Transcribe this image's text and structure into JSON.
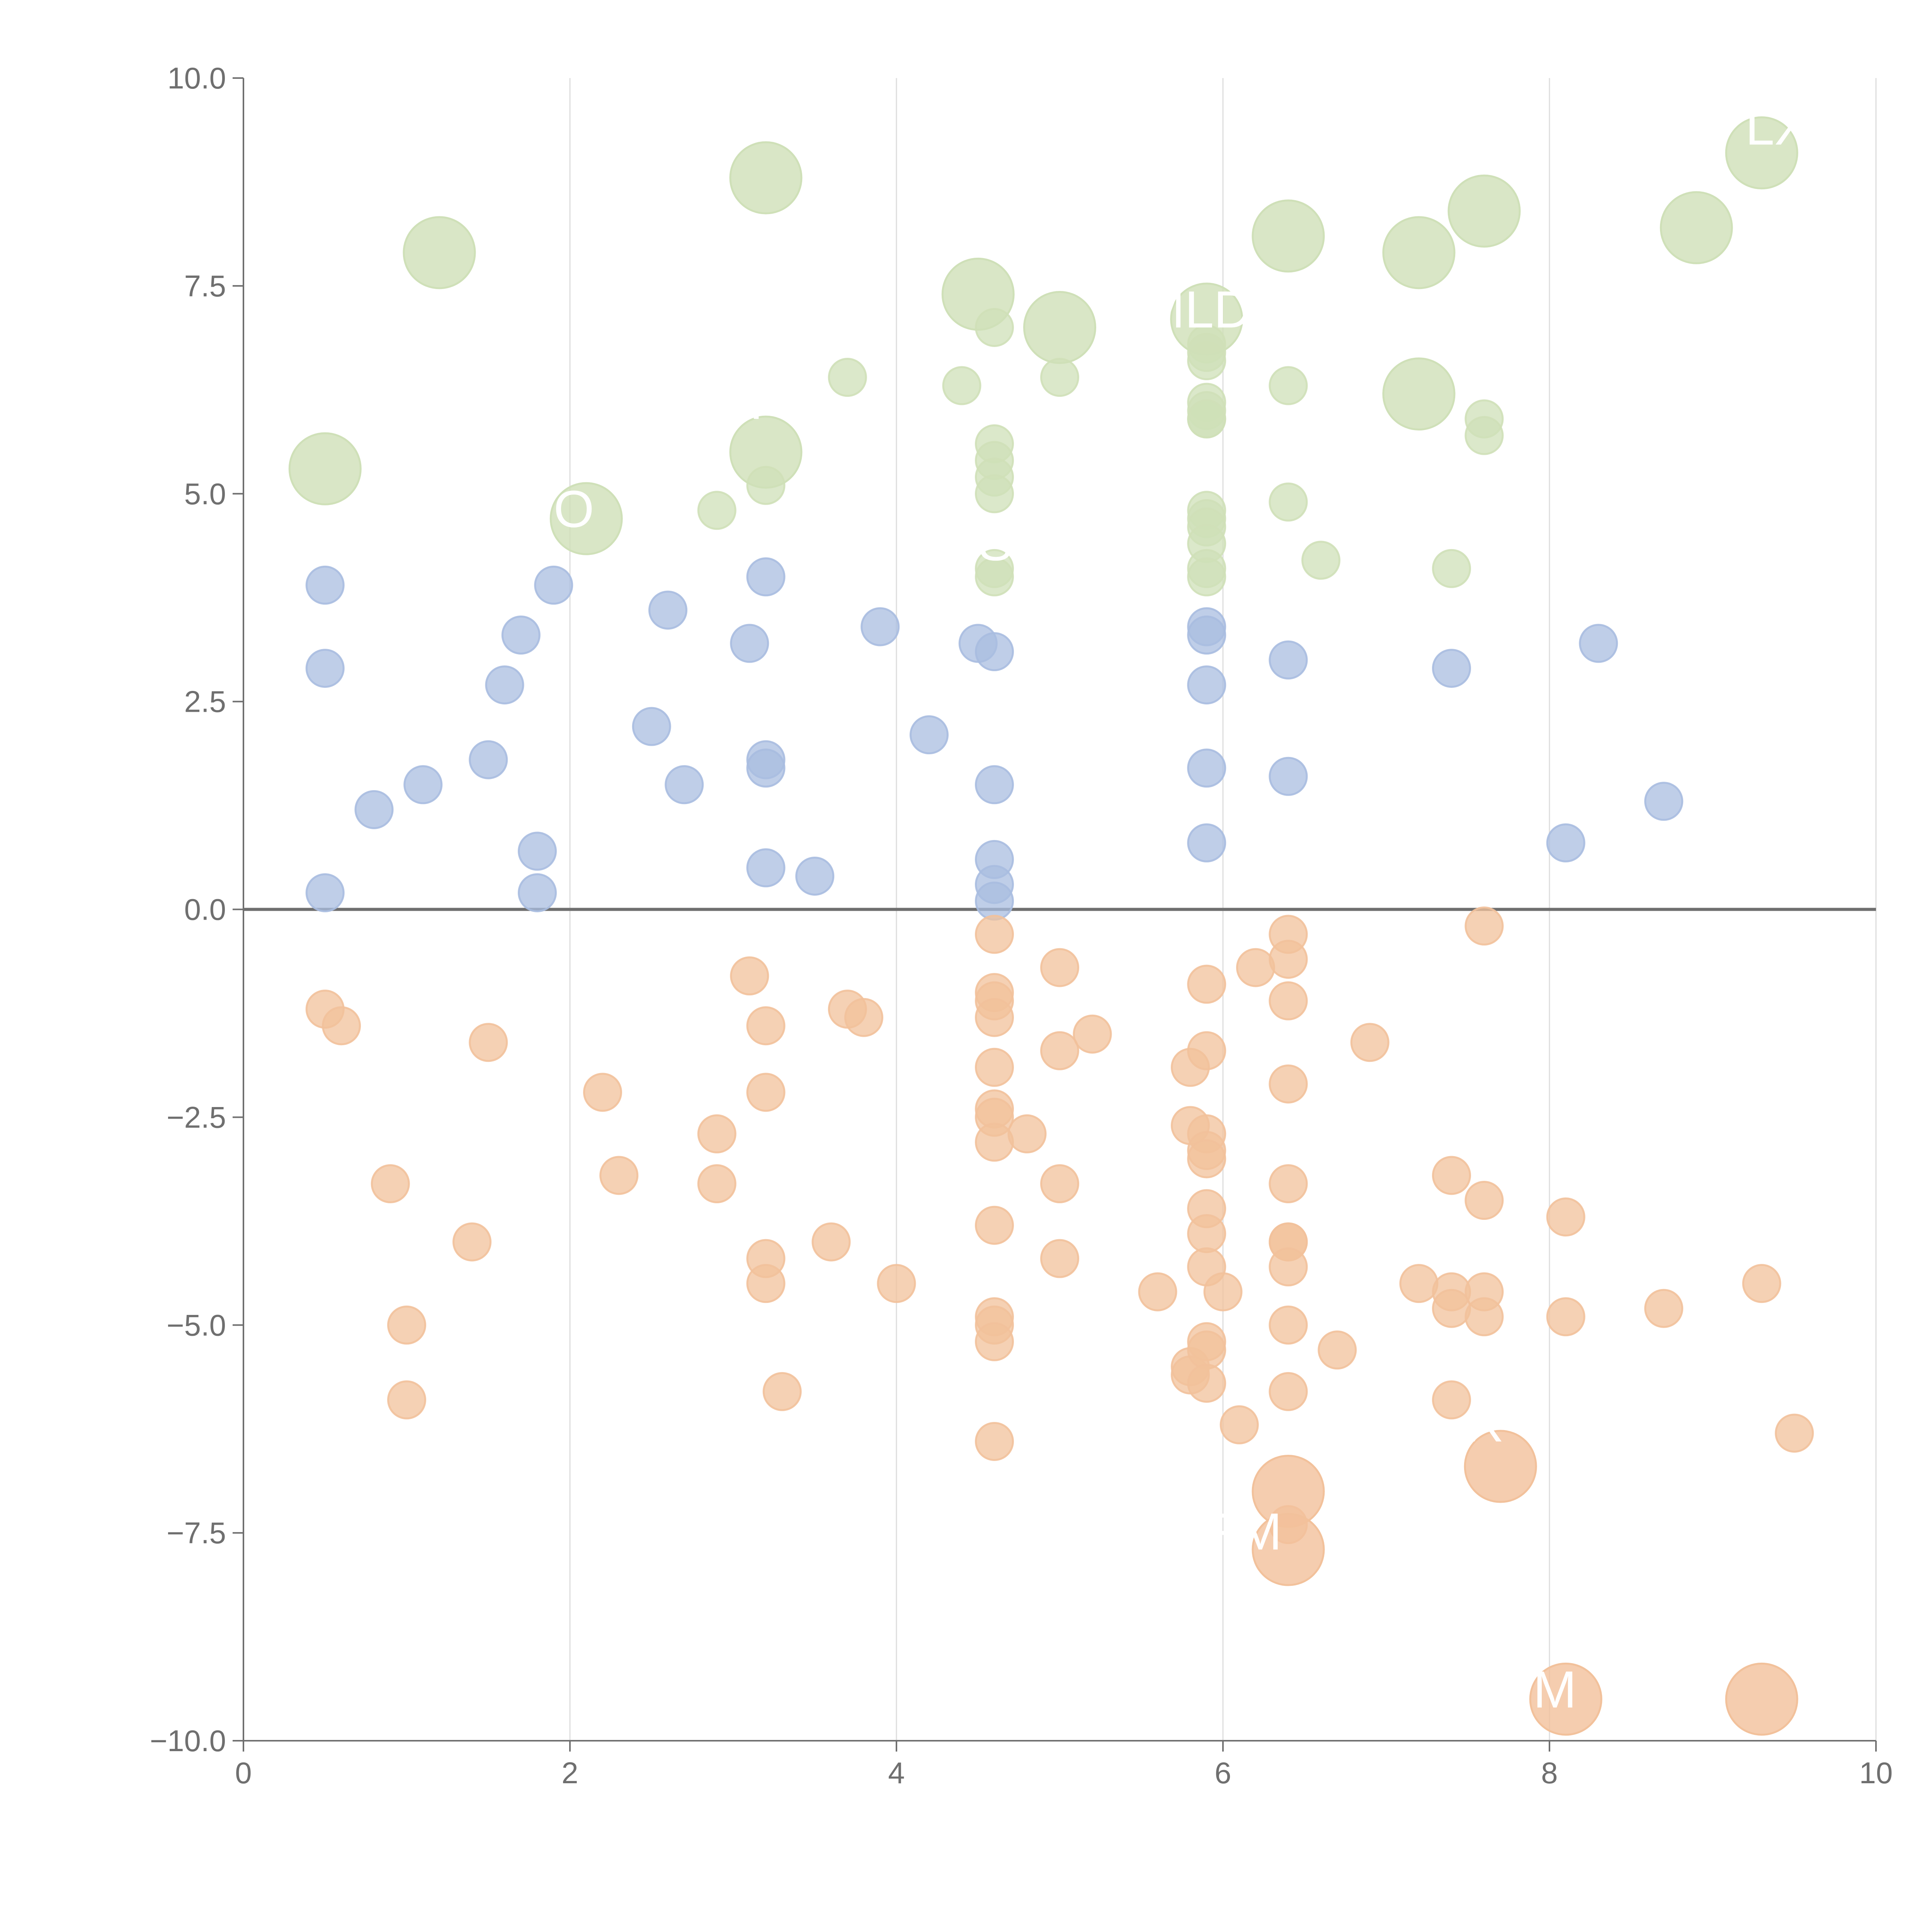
{
  "chart_data": {
    "type": "scatter",
    "title": "",
    "xlabel": "",
    "ylabel": "",
    "xlim": [
      0,
      10
    ],
    "ylim": [
      -10,
      10
    ],
    "x_ticks": [
      "0",
      "2",
      "4",
      "6",
      "8",
      "10"
    ],
    "y_ticks": [
      "−10.0",
      "−7.5",
      "−5.0",
      "−2.5",
      "0.0",
      "2.5",
      "5.0",
      "7.5",
      "10.0"
    ],
    "grid": "vertical",
    "reference_line_y": 0,
    "series": [
      {
        "color": "#a9bde0",
        "points": [
          [
            0.5,
            3.9
          ],
          [
            0.5,
            2.9
          ],
          [
            0.5,
            0.2
          ],
          [
            0.8,
            1.2
          ],
          [
            1.1,
            1.5
          ],
          [
            1.5,
            1.8
          ],
          [
            1.6,
            2.7
          ],
          [
            1.7,
            3.3
          ],
          [
            1.8,
            0.7
          ],
          [
            1.8,
            0.2
          ],
          [
            1.9,
            3.9
          ],
          [
            2.5,
            2.2
          ],
          [
            2.6,
            3.6
          ],
          [
            2.7,
            1.5
          ],
          [
            3.1,
            3.2
          ],
          [
            3.2,
            4.0
          ],
          [
            3.2,
            1.8
          ],
          [
            3.2,
            1.7
          ],
          [
            3.2,
            0.5
          ],
          [
            3.5,
            0.4
          ],
          [
            3.9,
            3.4
          ],
          [
            4.2,
            2.1
          ],
          [
            4.5,
            3.2
          ],
          [
            4.6,
            3.1
          ],
          [
            4.6,
            1.5
          ],
          [
            4.6,
            0.6
          ],
          [
            4.6,
            0.3
          ],
          [
            4.6,
            0.1
          ],
          [
            5.9,
            3.4
          ],
          [
            5.9,
            3.3
          ],
          [
            5.9,
            2.7
          ],
          [
            5.9,
            1.7
          ],
          [
            5.9,
            0.8
          ],
          [
            6.4,
            3.0
          ],
          [
            6.4,
            1.6
          ],
          [
            7.4,
            2.9
          ],
          [
            8.1,
            0.8
          ],
          [
            8.3,
            3.2
          ],
          [
            8.7,
            1.3
          ]
        ]
      },
      {
        "color": "#cfe0b8",
        "points": [
          [
            2.9,
            4.8
          ],
          [
            3.2,
            5.1
          ],
          [
            3.7,
            6.4
          ],
          [
            4.4,
            6.3
          ],
          [
            4.6,
            7.0
          ],
          [
            4.6,
            5.6
          ],
          [
            4.6,
            5.4
          ],
          [
            4.6,
            5.2
          ],
          [
            4.6,
            5.0
          ],
          [
            4.6,
            4.1
          ],
          [
            4.6,
            4.0
          ],
          [
            5.0,
            6.4
          ],
          [
            5.9,
            6.8
          ],
          [
            5.9,
            6.7
          ],
          [
            5.9,
            6.6
          ],
          [
            5.9,
            6.1
          ],
          [
            5.9,
            6.0
          ],
          [
            5.9,
            5.9
          ],
          [
            5.9,
            5.9
          ],
          [
            5.9,
            4.8
          ],
          [
            5.9,
            4.7
          ],
          [
            5.9,
            4.6
          ],
          [
            5.9,
            4.4
          ],
          [
            5.9,
            4.1
          ],
          [
            5.9,
            4.0
          ],
          [
            6.4,
            6.3
          ],
          [
            6.4,
            4.9
          ],
          [
            6.6,
            4.2
          ],
          [
            7.4,
            4.1
          ],
          [
            7.6,
            5.9
          ],
          [
            7.6,
            5.7
          ]
        ],
        "large_points": [
          [
            0.5,
            5.3
          ],
          [
            1.2,
            7.9
          ],
          [
            2.1,
            4.7
          ],
          [
            3.2,
            8.8
          ],
          [
            3.2,
            5.5
          ],
          [
            4.5,
            7.4
          ],
          [
            5.0,
            7.0
          ],
          [
            5.9,
            7.1
          ],
          [
            6.4,
            8.1
          ],
          [
            7.2,
            7.9
          ],
          [
            7.2,
            6.2
          ],
          [
            7.6,
            8.4
          ],
          [
            8.9,
            8.2
          ],
          [
            9.3,
            9.1
          ]
        ]
      },
      {
        "color": "#f2c19b",
        "points": [
          [
            0.5,
            -1.2
          ],
          [
            0.6,
            -1.4
          ],
          [
            0.9,
            -3.3
          ],
          [
            1.0,
            -5.0
          ],
          [
            1.0,
            -5.9
          ],
          [
            1.4,
            -4.0
          ],
          [
            1.5,
            -1.6
          ],
          [
            2.2,
            -2.2
          ],
          [
            2.3,
            -3.2
          ],
          [
            2.9,
            -2.7
          ],
          [
            2.9,
            -3.3
          ],
          [
            3.1,
            -0.8
          ],
          [
            3.2,
            -1.4
          ],
          [
            3.2,
            -2.2
          ],
          [
            3.2,
            -4.2
          ],
          [
            3.2,
            -4.5
          ],
          [
            3.3,
            -5.8
          ],
          [
            3.6,
            -4.0
          ],
          [
            3.7,
            -1.2
          ],
          [
            3.8,
            -1.3
          ],
          [
            4.0,
            -4.5
          ],
          [
            4.6,
            -0.3
          ],
          [
            4.6,
            -1.0
          ],
          [
            4.6,
            -1.1
          ],
          [
            4.6,
            -1.3
          ],
          [
            4.6,
            -1.9
          ],
          [
            4.6,
            -2.4
          ],
          [
            4.6,
            -2.5
          ],
          [
            4.6,
            -2.8
          ],
          [
            4.6,
            -3.8
          ],
          [
            4.6,
            -4.9
          ],
          [
            4.6,
            -5.0
          ],
          [
            4.6,
            -5.2
          ],
          [
            4.6,
            -6.4
          ],
          [
            4.8,
            -2.7
          ],
          [
            5.0,
            -0.7
          ],
          [
            5.0,
            -1.7
          ],
          [
            5.0,
            -3.3
          ],
          [
            5.0,
            -4.2
          ],
          [
            5.2,
            -1.5
          ],
          [
            5.6,
            -4.6
          ],
          [
            5.8,
            -5.5
          ],
          [
            5.8,
            -5.6
          ],
          [
            5.8,
            -1.9
          ],
          [
            5.8,
            -2.6
          ],
          [
            5.9,
            -0.9
          ],
          [
            5.9,
            -1.7
          ],
          [
            5.9,
            -2.7
          ],
          [
            5.9,
            -2.9
          ],
          [
            5.9,
            -3.0
          ],
          [
            5.9,
            -3.6
          ],
          [
            5.9,
            -3.9
          ],
          [
            5.9,
            -4.3
          ],
          [
            5.9,
            -5.2
          ],
          [
            5.9,
            -5.3
          ],
          [
            5.9,
            -5.7
          ],
          [
            6.0,
            -4.6
          ],
          [
            6.1,
            -6.2
          ],
          [
            6.2,
            -0.7
          ],
          [
            6.4,
            -0.3
          ],
          [
            6.4,
            -0.6
          ],
          [
            6.4,
            -1.1
          ],
          [
            6.4,
            -2.1
          ],
          [
            6.4,
            -3.3
          ],
          [
            6.4,
            -4.0
          ],
          [
            6.4,
            -4.0
          ],
          [
            6.4,
            -4.3
          ],
          [
            6.4,
            -5.0
          ],
          [
            6.4,
            -5.8
          ],
          [
            6.4,
            -7.4
          ],
          [
            6.7,
            -5.3
          ],
          [
            6.9,
            -1.6
          ],
          [
            7.2,
            -4.5
          ],
          [
            7.4,
            -3.2
          ],
          [
            7.4,
            -4.6
          ],
          [
            7.4,
            -4.8
          ],
          [
            7.4,
            -5.9
          ],
          [
            7.6,
            -0.2
          ],
          [
            7.6,
            -3.5
          ],
          [
            7.6,
            -4.6
          ],
          [
            7.6,
            -4.9
          ],
          [
            8.1,
            -3.7
          ],
          [
            8.1,
            -4.9
          ],
          [
            8.7,
            -4.8
          ],
          [
            9.3,
            -4.5
          ],
          [
            9.5,
            -6.3
          ]
        ],
        "large_points": [
          [
            6.4,
            -7.0
          ],
          [
            6.4,
            -7.7
          ],
          [
            7.7,
            -6.7
          ],
          [
            8.1,
            -9.5
          ],
          [
            9.3,
            -9.5
          ]
        ]
      }
    ],
    "point_labels": [
      {
        "text": "MLDX",
        "x": 5.5,
        "y": 7.0
      },
      {
        "text": "LX",
        "x": 9.2,
        "y": 9.2
      },
      {
        "text": "O",
        "x": 1.9,
        "y": 4.6
      },
      {
        "text": "S",
        "x": 4.5,
        "y": 4.2
      },
      {
        "text": "P",
        "x": 3.1,
        "y": 5.9
      },
      {
        "text": "FM",
        "x": 5.9,
        "y": -7.7
      },
      {
        "text": "M",
        "x": 7.9,
        "y": -9.6
      },
      {
        "text": "X",
        "x": 7.5,
        "y": -6.4
      }
    ]
  }
}
